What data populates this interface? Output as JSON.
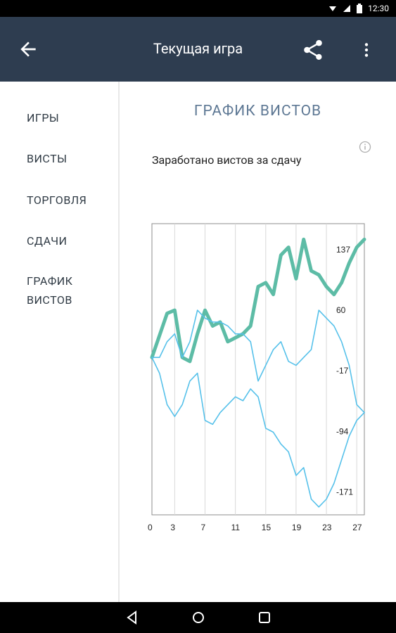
{
  "statusbar": {
    "time": "12:30"
  },
  "appbar": {
    "title": "Текущая игра"
  },
  "nav": {
    "items": [
      {
        "label": "ИГРЫ"
      },
      {
        "label": "ВИСТЫ"
      },
      {
        "label": "ТОРГОВЛЯ"
      },
      {
        "label": "СДАЧИ"
      },
      {
        "label": "ГРАФИК\nВИСТОВ"
      }
    ]
  },
  "content": {
    "heading": "ГРАФИК ВИСТОВ",
    "subtitle": "Заработано вистов за сдачу"
  },
  "colors": {
    "appbar": "#2e3d50",
    "heading": "#5e7894",
    "series_main": "#5dbca6",
    "series_other": "#56c1ea"
  },
  "chart_data": {
    "type": "line",
    "xlim": [
      0,
      28
    ],
    "ylim": [
      -200,
      170
    ],
    "x_ticks": [
      0,
      3,
      7,
      11,
      15,
      19,
      23,
      27
    ],
    "y_ticks": [
      137,
      60,
      -17,
      -94,
      -171
    ],
    "grid": "vertical",
    "series": [
      {
        "x": [
          0,
          1,
          2,
          3,
          4,
          5,
          6,
          7,
          8,
          9,
          10,
          11,
          12,
          13,
          14,
          15,
          16,
          17,
          18,
          19,
          20,
          21,
          22,
          23,
          24,
          25,
          26,
          27,
          28
        ],
        "values": [
          0,
          28,
          56,
          60,
          0,
          -5,
          30,
          60,
          40,
          45,
          20,
          25,
          30,
          40,
          90,
          95,
          80,
          130,
          140,
          100,
          150,
          110,
          105,
          90,
          80,
          95,
          120,
          140,
          150
        ],
        "style": "thick"
      },
      {
        "x": [
          0,
          1,
          2,
          3,
          4,
          5,
          6,
          7,
          8,
          9,
          10,
          11,
          12,
          13,
          14,
          15,
          16,
          17,
          18,
          19,
          20,
          21,
          22,
          23,
          24,
          25,
          26,
          27,
          28
        ],
        "values": [
          0,
          0,
          20,
          30,
          0,
          20,
          60,
          50,
          45,
          45,
          40,
          30,
          30,
          20,
          -30,
          -10,
          10,
          20,
          -5,
          -10,
          0,
          10,
          60,
          50,
          40,
          20,
          -10,
          -60,
          -70
        ],
        "style": "thin"
      },
      {
        "x": [
          0,
          1,
          2,
          3,
          4,
          5,
          6,
          7,
          8,
          9,
          10,
          11,
          12,
          13,
          14,
          15,
          16,
          17,
          18,
          19,
          20,
          21,
          22,
          23,
          24,
          25,
          26,
          27,
          28
        ],
        "values": [
          0,
          -20,
          -60,
          -75,
          -60,
          -30,
          -20,
          -80,
          -85,
          -70,
          -60,
          -50,
          -55,
          -40,
          -50,
          -90,
          -95,
          -110,
          -120,
          -150,
          -140,
          -180,
          -190,
          -180,
          -160,
          -130,
          -100,
          -80,
          -70
        ],
        "style": "thin"
      }
    ]
  }
}
